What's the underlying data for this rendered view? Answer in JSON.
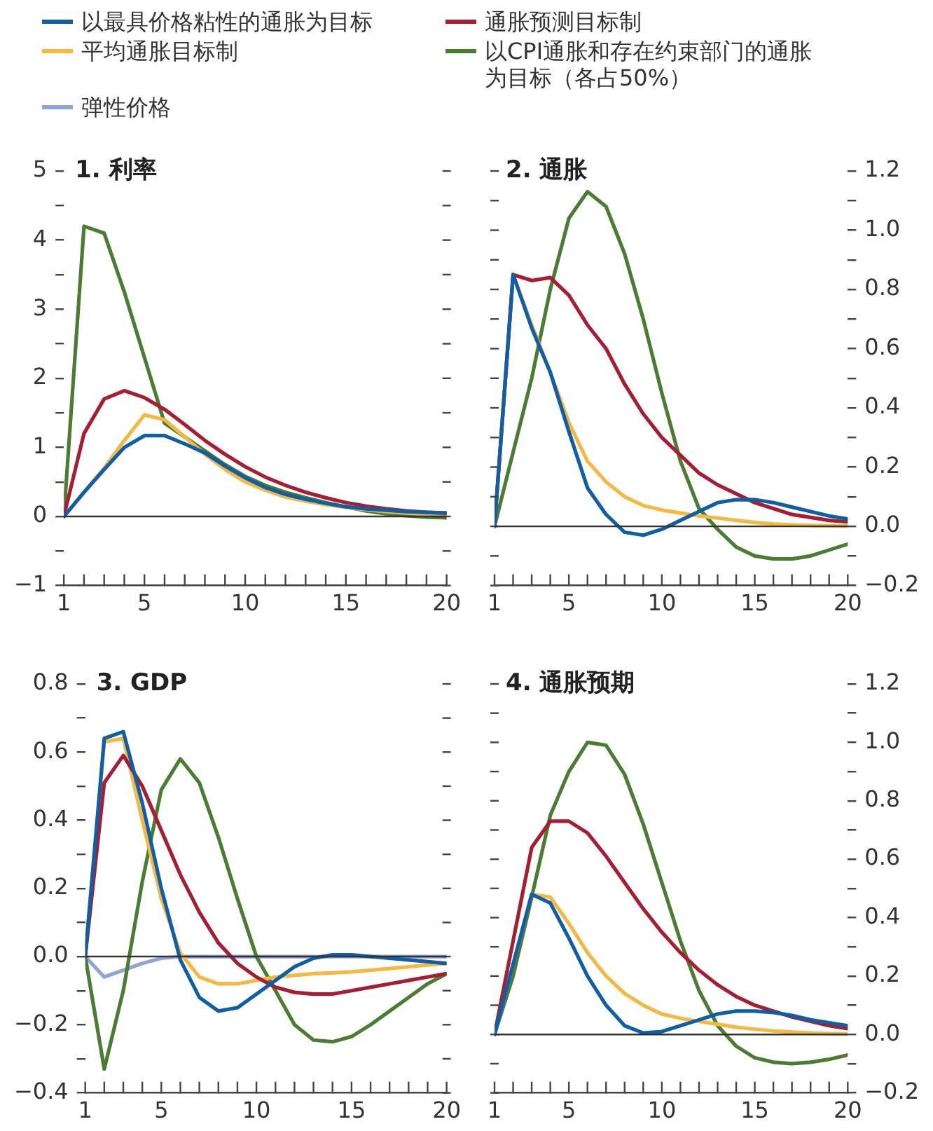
{
  "chart_data": [
    {
      "type": "line",
      "title": "1. 利率",
      "x": [
        1,
        2,
        3,
        4,
        5,
        6,
        7,
        8,
        9,
        10,
        11,
        12,
        13,
        14,
        15,
        16,
        17,
        18,
        19,
        20
      ],
      "xlim": [
        1,
        20
      ],
      "xticks": [
        1,
        {
          "value": 2,
          "label": null
        },
        {
          "value": 3,
          "label": null
        },
        {
          "value": 4,
          "label": null
        },
        5,
        {
          "value": 6,
          "label": null
        },
        {
          "value": 7,
          "label": null
        },
        {
          "value": 8,
          "label": null
        },
        {
          "value": 9,
          "label": null
        },
        10,
        {
          "value": 11,
          "label": null
        },
        {
          "value": 12,
          "label": null
        },
        {
          "value": 13,
          "label": null
        },
        {
          "value": 14,
          "label": null
        },
        15,
        {
          "value": 16,
          "label": null
        },
        {
          "value": 17,
          "label": null
        },
        {
          "value": 18,
          "label": null
        },
        {
          "value": 19,
          "label": null
        },
        20
      ],
      "ylim": [
        -1,
        5
      ],
      "yticks": [
        {
          "value": -1,
          "label": "−1"
        },
        {
          "value": -0.5,
          "label": null
        },
        0,
        {
          "value": 0.5,
          "label": null
        },
        1,
        {
          "value": 1.5,
          "label": null
        },
        2,
        {
          "value": 2.5,
          "label": null
        },
        3,
        {
          "value": 3.5,
          "label": null
        },
        4,
        {
          "value": 4.5,
          "label": null
        },
        5
      ],
      "ref_lines": [
        {
          "axis": "y",
          "value": 0,
          "color": "#333333"
        }
      ],
      "marker": "none",
      "line_style": "solid",
      "grid": false,
      "legend": "top",
      "series": [
        {
          "name": "以最具价格粘性的通胀为目标",
          "color": "#0f5fa8",
          "values": [
            0,
            0.35,
            0.68,
            1.0,
            1.17,
            1.17,
            1.05,
            0.92,
            0.73,
            0.56,
            0.42,
            0.32,
            0.25,
            0.19,
            0.14,
            0.11,
            0.09,
            0.07,
            0.06,
            0.05
          ]
        },
        {
          "name": "通胀预测目标制",
          "color": "#a71d31",
          "values": [
            0,
            1.2,
            1.7,
            1.82,
            1.72,
            1.55,
            1.33,
            1.1,
            0.9,
            0.72,
            0.57,
            0.45,
            0.35,
            0.27,
            0.2,
            0.15,
            0.11,
            0.08,
            0.06,
            0.05
          ]
        },
        {
          "name": "平均通胀目标制",
          "color": "#f5b840",
          "values": [
            0,
            0.35,
            0.7,
            1.1,
            1.47,
            1.4,
            1.15,
            0.9,
            0.68,
            0.5,
            0.38,
            0.28,
            0.22,
            0.17,
            0.13,
            0.1,
            0.07,
            0.05,
            0.03,
            0.02
          ]
        },
        {
          "name": "以CPI通胀和存在约束部门的通胀为目标（各占50%）",
          "color": "#4a7d31",
          "values": [
            0,
            4.2,
            4.1,
            3.25,
            2.3,
            1.35,
            1.15,
            0.95,
            0.75,
            0.58,
            0.45,
            0.35,
            0.27,
            0.2,
            0.14,
            0.08,
            0.04,
            0.01,
            -0.01,
            -0.02
          ]
        }
      ]
    },
    {
      "type": "line",
      "title": "2. 通胀",
      "x": [
        1,
        2,
        3,
        4,
        5,
        6,
        7,
        8,
        9,
        10,
        11,
        12,
        13,
        14,
        15,
        16,
        17,
        18,
        19,
        20
      ],
      "xlim": [
        1,
        20
      ],
      "xticks": [
        1,
        {
          "value": 2,
          "label": null
        },
        {
          "value": 3,
          "label": null
        },
        {
          "value": 4,
          "label": null
        },
        5,
        {
          "value": 6,
          "label": null
        },
        {
          "value": 7,
          "label": null
        },
        {
          "value": 8,
          "label": null
        },
        {
          "value": 9,
          "label": null
        },
        10,
        {
          "value": 11,
          "label": null
        },
        {
          "value": 12,
          "label": null
        },
        {
          "value": 13,
          "label": null
        },
        {
          "value": 14,
          "label": null
        },
        15,
        {
          "value": 16,
          "label": null
        },
        {
          "value": 17,
          "label": null
        },
        {
          "value": 18,
          "label": null
        },
        {
          "value": 19,
          "label": null
        },
        20
      ],
      "y2lim": [
        -0.2,
        1.2
      ],
      "y2ticks": [
        {
          "value": -0.2,
          "label": "−0.2"
        },
        {
          "value": -0.1,
          "label": null
        },
        {
          "value": 0,
          "label": "0.0"
        },
        {
          "value": 0.1,
          "label": null
        },
        0.2,
        {
          "value": 0.3,
          "label": null
        },
        0.4,
        {
          "value": 0.5,
          "label": null
        },
        0.6,
        {
          "value": 0.7,
          "label": null
        },
        0.8,
        {
          "value": 0.9,
          "label": null
        },
        {
          "value": 1,
          "label": "1.0"
        },
        {
          "value": 1.1,
          "label": null
        },
        1.2
      ],
      "ref_lines": [
        {
          "axis": "y2",
          "value": 0,
          "color": "#333333"
        }
      ],
      "marker": "none",
      "line_style": "solid",
      "grid": false,
      "series": [
        {
          "name": "以最具价格粘性的通胀为目标",
          "color": "#0f5fa8",
          "axis": "y2",
          "values": [
            0,
            0.85,
            0.67,
            0.52,
            0.32,
            0.13,
            0.04,
            -0.02,
            -0.03,
            -0.01,
            0.02,
            0.05,
            0.08,
            0.09,
            0.09,
            0.08,
            0.065,
            0.05,
            0.035,
            0.025
          ]
        },
        {
          "name": "通胀预测目标制",
          "color": "#a71d31",
          "axis": "y2",
          "values": [
            0,
            0.85,
            0.83,
            0.84,
            0.78,
            0.68,
            0.6,
            0.48,
            0.38,
            0.3,
            0.24,
            0.18,
            0.14,
            0.11,
            0.08,
            0.06,
            0.04,
            0.03,
            0.02,
            0.015
          ]
        },
        {
          "name": "平均通胀目标制",
          "color": "#f5b840",
          "axis": "y2",
          "values": [
            0,
            0.85,
            0.68,
            0.52,
            0.35,
            0.22,
            0.15,
            0.1,
            0.07,
            0.055,
            0.045,
            0.035,
            0.028,
            0.02,
            0.013,
            0.008,
            0.005,
            0.003,
            0.002,
            0.001
          ]
        },
        {
          "name": "以CPI通胀和存在约束部门的通胀为目标（各占50%）",
          "color": "#4a7d31",
          "axis": "y2",
          "values": [
            0,
            0.25,
            0.5,
            0.8,
            1.04,
            1.13,
            1.08,
            0.92,
            0.7,
            0.45,
            0.22,
            0.06,
            -0.01,
            -0.07,
            -0.1,
            -0.11,
            -0.11,
            -0.1,
            -0.08,
            -0.06
          ]
        }
      ]
    },
    {
      "type": "line",
      "title": "3. GDP",
      "x": [
        1,
        2,
        3,
        4,
        5,
        6,
        7,
        8,
        9,
        10,
        11,
        12,
        13,
        14,
        15,
        16,
        17,
        18,
        19,
        20
      ],
      "xlim": [
        1,
        20
      ],
      "xticks": [
        1,
        {
          "value": 2,
          "label": null
        },
        {
          "value": 3,
          "label": null
        },
        {
          "value": 4,
          "label": null
        },
        5,
        {
          "value": 6,
          "label": null
        },
        {
          "value": 7,
          "label": null
        },
        {
          "value": 8,
          "label": null
        },
        {
          "value": 9,
          "label": null
        },
        10,
        {
          "value": 11,
          "label": null
        },
        {
          "value": 12,
          "label": null
        },
        {
          "value": 13,
          "label": null
        },
        {
          "value": 14,
          "label": null
        },
        15,
        {
          "value": 16,
          "label": null
        },
        {
          "value": 17,
          "label": null
        },
        {
          "value": 18,
          "label": null
        },
        {
          "value": 19,
          "label": null
        },
        20
      ],
      "ylim": [
        -0.4,
        0.8
      ],
      "yticks": [
        {
          "value": -0.4,
          "label": "−0.4"
        },
        {
          "value": -0.3,
          "label": null
        },
        {
          "value": -0.2,
          "label": "−0.2"
        },
        {
          "value": -0.1,
          "label": null
        },
        {
          "value": 0,
          "label": "0.0"
        },
        {
          "value": 0.1,
          "label": null
        },
        0.2,
        {
          "value": 0.3,
          "label": null
        },
        0.4,
        {
          "value": 0.5,
          "label": null
        },
        0.6,
        {
          "value": 0.7,
          "label": null
        },
        0.8
      ],
      "ref_lines": [
        {
          "axis": "y",
          "value": 0,
          "color": "#333333"
        }
      ],
      "marker": "none",
      "line_style": "solid",
      "grid": false,
      "series": [
        {
          "name": "以最具价格粘性的通胀为目标",
          "color": "#0f5fa8",
          "values": [
            0,
            0.64,
            0.66,
            0.45,
            0.2,
            -0.01,
            -0.12,
            -0.16,
            -0.15,
            -0.11,
            -0.07,
            -0.03,
            -0.005,
            0.005,
            0.005,
            0,
            -0.005,
            -0.01,
            -0.015,
            -0.02
          ]
        },
        {
          "name": "通胀预测目标制",
          "color": "#a71d31",
          "values": [
            0,
            0.51,
            0.59,
            0.5,
            0.37,
            0.24,
            0.13,
            0.04,
            -0.02,
            -0.06,
            -0.09,
            -0.105,
            -0.11,
            -0.11,
            -0.1,
            -0.09,
            -0.08,
            -0.07,
            -0.06,
            -0.05
          ]
        },
        {
          "name": "平均通胀目标制",
          "color": "#f5b840",
          "values": [
            0,
            0.63,
            0.64,
            0.4,
            0.17,
            0.01,
            -0.06,
            -0.08,
            -0.08,
            -0.07,
            -0.06,
            -0.055,
            -0.05,
            -0.048,
            -0.045,
            -0.04,
            -0.035,
            -0.03,
            -0.025,
            -0.02
          ]
        },
        {
          "name": "以CPI通胀和存在约束部门的通胀为目标（各占50%）",
          "color": "#4a7d31",
          "values": [
            0,
            -0.33,
            -0.1,
            0.22,
            0.49,
            0.58,
            0.51,
            0.35,
            0.17,
            0,
            -0.1,
            -0.2,
            -0.245,
            -0.25,
            -0.235,
            -0.2,
            -0.16,
            -0.12,
            -0.08,
            -0.05
          ]
        },
        {
          "name": "弹性价格",
          "color": "#8fa5d9",
          "values": [
            0,
            -0.06,
            -0.04,
            -0.02,
            -0.005,
            0,
            0,
            0,
            0,
            0,
            0,
            0,
            0,
            0,
            0,
            0,
            0,
            0,
            0,
            0
          ]
        }
      ]
    },
    {
      "type": "line",
      "title": "4. 通胀预期",
      "x": [
        1,
        2,
        3,
        4,
        5,
        6,
        7,
        8,
        9,
        10,
        11,
        12,
        13,
        14,
        15,
        16,
        17,
        18,
        19,
        20
      ],
      "xlim": [
        1,
        20
      ],
      "xticks": [
        1,
        {
          "value": 2,
          "label": null
        },
        {
          "value": 3,
          "label": null
        },
        {
          "value": 4,
          "label": null
        },
        5,
        {
          "value": 6,
          "label": null
        },
        {
          "value": 7,
          "label": null
        },
        {
          "value": 8,
          "label": null
        },
        {
          "value": 9,
          "label": null
        },
        10,
        {
          "value": 11,
          "label": null
        },
        {
          "value": 12,
          "label": null
        },
        {
          "value": 13,
          "label": null
        },
        {
          "value": 14,
          "label": null
        },
        15,
        {
          "value": 16,
          "label": null
        },
        {
          "value": 17,
          "label": null
        },
        {
          "value": 18,
          "label": null
        },
        {
          "value": 19,
          "label": null
        },
        20
      ],
      "y2lim": [
        -0.2,
        1.2
      ],
      "y2ticks": [
        {
          "value": -0.2,
          "label": "−0.2"
        },
        {
          "value": -0.1,
          "label": null
        },
        {
          "value": 0,
          "label": "0.0"
        },
        {
          "value": 0.1,
          "label": null
        },
        0.2,
        {
          "value": 0.3,
          "label": null
        },
        0.4,
        {
          "value": 0.5,
          "label": null
        },
        0.6,
        {
          "value": 0.7,
          "label": null
        },
        0.8,
        {
          "value": 0.9,
          "label": null
        },
        {
          "value": 1,
          "label": "1.0"
        },
        {
          "value": 1.1,
          "label": null
        },
        1.2
      ],
      "ref_lines": [
        {
          "axis": "y2",
          "value": 0,
          "color": "#333333"
        }
      ],
      "marker": "none",
      "line_style": "solid",
      "grid": false,
      "series": [
        {
          "name": "以最具价格粘性的通胀为目标",
          "color": "#0f5fa8",
          "axis": "y2",
          "values": [
            0,
            0.24,
            0.48,
            0.45,
            0.33,
            0.2,
            0.1,
            0.03,
            0.005,
            0.01,
            0.03,
            0.05,
            0.07,
            0.08,
            0.08,
            0.075,
            0.065,
            0.05,
            0.04,
            0.03
          ]
        },
        {
          "name": "通胀预测目标制",
          "color": "#a71d31",
          "axis": "y2",
          "values": [
            0,
            0.32,
            0.64,
            0.73,
            0.73,
            0.69,
            0.61,
            0.52,
            0.43,
            0.35,
            0.28,
            0.22,
            0.17,
            0.13,
            0.1,
            0.08,
            0.06,
            0.045,
            0.03,
            0.02
          ]
        },
        {
          "name": "平均通胀目标制",
          "color": "#f5b840",
          "axis": "y2",
          "values": [
            0,
            0.24,
            0.48,
            0.47,
            0.38,
            0.28,
            0.2,
            0.14,
            0.1,
            0.07,
            0.055,
            0.045,
            0.035,
            0.025,
            0.018,
            0.012,
            0.008,
            0.005,
            0.003,
            0.002
          ]
        },
        {
          "name": "以CPI通胀和存在约束部门的通胀为目标（各占50%）",
          "color": "#4a7d31",
          "axis": "y2",
          "values": [
            0,
            0.2,
            0.47,
            0.75,
            0.9,
            1.0,
            0.99,
            0.89,
            0.72,
            0.52,
            0.32,
            0.15,
            0.03,
            -0.04,
            -0.08,
            -0.095,
            -0.1,
            -0.095,
            -0.085,
            -0.07
          ]
        }
      ]
    }
  ]
}
